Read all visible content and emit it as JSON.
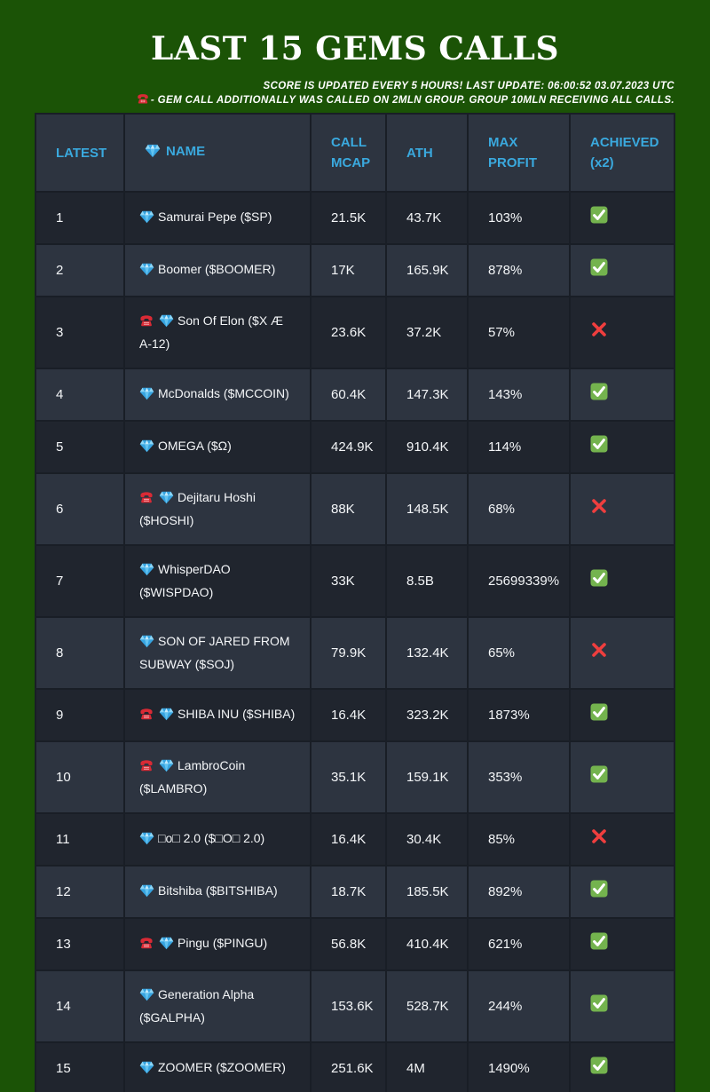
{
  "header": {
    "title": "LAST 15 GEMS CALLS",
    "subtitle_line1": "SCORE IS UPDATED EVERY 5 HOURS! LAST UPDATE: 06:00:52 03.07.2023 UTC",
    "subtitle_line2": "- GEM CALL ADDITIONALLY WAS CALLED ON 2MLN GROUP. GROUP 10MLN RECEIVING ALL CALLS.",
    "subtitle_line2_icon": "phone-icon"
  },
  "colors": {
    "page_bg": "#1b5306",
    "row_dark": "#20252e",
    "row_light": "#2d3440",
    "cell_border": "#191e26",
    "header_text": "#3aa9de",
    "body_text": "#ffffff",
    "check_green": "#74b34e",
    "cross_red": "#ef3e3e",
    "phone_red": "#d92a35",
    "diamond_blue": "#4fb7ef"
  },
  "table": {
    "columns": [
      {
        "label": "LATEST"
      },
      {
        "label": "NAME",
        "icon": "diamond-icon"
      },
      {
        "label": "CALL MCAP"
      },
      {
        "label": "ATH"
      },
      {
        "label": "MAX PROFIT"
      },
      {
        "label": "ACHIEVED (x2)"
      }
    ],
    "rows": [
      {
        "latest": "1",
        "phone": false,
        "name": "Samurai Pepe ($SP)",
        "call_mcap": "21.5K",
        "ath": "43.7K",
        "max_profit": "103%",
        "achieved": true
      },
      {
        "latest": "2",
        "phone": false,
        "name": "Boomer ($BOOMER)",
        "call_mcap": "17K",
        "ath": "165.9K",
        "max_profit": "878%",
        "achieved": true
      },
      {
        "latest": "3",
        "phone": true,
        "name": "Son Of Elon ($X Æ\nA-12)",
        "call_mcap": "23.6K",
        "ath": "37.2K",
        "max_profit": "57%",
        "achieved": false
      },
      {
        "latest": "4",
        "phone": false,
        "name": "McDonalds ($MCCOIN)",
        "call_mcap": "60.4K",
        "ath": "147.3K",
        "max_profit": "143%",
        "achieved": true
      },
      {
        "latest": "5",
        "phone": false,
        "name": "OMEGA ($Ω)",
        "call_mcap": "424.9K",
        "ath": "910.4K",
        "max_profit": "114%",
        "achieved": true
      },
      {
        "latest": "6",
        "phone": true,
        "name": "Dejitaru Hoshi\n($HOSHI)",
        "call_mcap": "88K",
        "ath": "148.5K",
        "max_profit": "68%",
        "achieved": false
      },
      {
        "latest": "7",
        "phone": false,
        "name": "WhisperDAO\n($WISPDAO)",
        "call_mcap": "33K",
        "ath": "8.5B",
        "max_profit": "25699339%",
        "achieved": true
      },
      {
        "latest": "8",
        "phone": false,
        "name": "SON OF JARED FROM\nSUBWAY ($SOJ)",
        "call_mcap": "79.9K",
        "ath": "132.4K",
        "max_profit": "65%",
        "achieved": false
      },
      {
        "latest": "9",
        "phone": true,
        "name": "SHIBA INU ($SHIBA)",
        "call_mcap": "16.4K",
        "ath": "323.2K",
        "max_profit": "1873%",
        "achieved": true
      },
      {
        "latest": "10",
        "phone": true,
        "name": "LambroCoin\n($LAMBRO)",
        "call_mcap": "35.1K",
        "ath": "159.1K",
        "max_profit": "353%",
        "achieved": true
      },
      {
        "latest": "11",
        "phone": false,
        "name": "□o□ 2.0 ($□O□ 2.0)",
        "call_mcap": "16.4K",
        "ath": "30.4K",
        "max_profit": "85%",
        "achieved": false
      },
      {
        "latest": "12",
        "phone": false,
        "name": "Bitshiba ($BITSHIBA)",
        "call_mcap": "18.7K",
        "ath": "185.5K",
        "max_profit": "892%",
        "achieved": true
      },
      {
        "latest": "13",
        "phone": true,
        "name": "Pingu ($PINGU)",
        "call_mcap": "56.8K",
        "ath": "410.4K",
        "max_profit": "621%",
        "achieved": true
      },
      {
        "latest": "14",
        "phone": false,
        "name": "Generation Alpha\n($GALPHA)",
        "call_mcap": "153.6K",
        "ath": "528.7K",
        "max_profit": "244%",
        "achieved": true
      },
      {
        "latest": "15",
        "phone": false,
        "name": "ZOOMER ($ZOOMER)",
        "call_mcap": "251.6K",
        "ath": "4M",
        "max_profit": "1490%",
        "achieved": true
      }
    ],
    "achieved_yes_icon": "check-icon",
    "achieved_no_icon": "cross-icon"
  }
}
